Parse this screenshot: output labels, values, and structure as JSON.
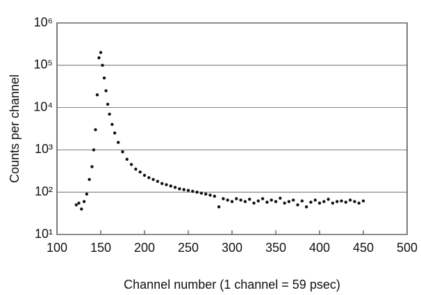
{
  "chart_data": {
    "type": "scatter",
    "log_y": true,
    "grid": true,
    "color": "#111111",
    "xlabel": "Channel number (1 channel = 59 psec)",
    "ylabel": "Counts per channel",
    "xlim": [
      100,
      500
    ],
    "xticks": [
      100,
      150,
      200,
      250,
      300,
      350,
      400,
      450,
      500
    ],
    "ylim": [
      10,
      1000000
    ],
    "yticks": [
      {
        "value": 10,
        "label": "10¹"
      },
      {
        "value": 100,
        "label": "10²"
      },
      {
        "value": 1000,
        "label": "10³"
      },
      {
        "value": 10000,
        "label": "10⁴"
      },
      {
        "value": 100000,
        "label": "10⁵"
      },
      {
        "value": 1000000,
        "label": "10⁶"
      }
    ],
    "x": [
      122,
      125,
      128,
      131,
      134,
      137,
      140,
      142,
      144,
      146,
      148,
      150,
      152,
      154,
      156,
      158,
      160,
      163,
      166,
      170,
      175,
      180,
      185,
      190,
      195,
      200,
      205,
      210,
      215,
      220,
      225,
      230,
      235,
      240,
      245,
      250,
      255,
      260,
      265,
      270,
      275,
      280,
      285,
      290,
      295,
      300,
      305,
      310,
      315,
      320,
      325,
      330,
      335,
      340,
      345,
      350,
      355,
      360,
      365,
      370,
      375,
      380,
      385,
      390,
      395,
      400,
      405,
      410,
      415,
      420,
      425,
      430,
      435,
      440,
      445,
      450
    ],
    "values": [
      50,
      55,
      40,
      60,
      90,
      200,
      400,
      1000,
      3000,
      20000,
      150000,
      200000,
      100000,
      50000,
      25000,
      12000,
      7000,
      4000,
      2500,
      1500,
      900,
      600,
      450,
      350,
      300,
      250,
      220,
      200,
      180,
      160,
      150,
      140,
      130,
      120,
      115,
      110,
      105,
      100,
      95,
      90,
      85,
      80,
      45,
      70,
      65,
      60,
      70,
      65,
      60,
      68,
      55,
      62,
      70,
      58,
      65,
      60,
      72,
      55,
      60,
      65,
      50,
      62,
      45,
      58,
      65,
      55,
      60,
      68,
      55,
      60,
      62,
      58,
      65,
      60,
      55,
      62
    ]
  }
}
